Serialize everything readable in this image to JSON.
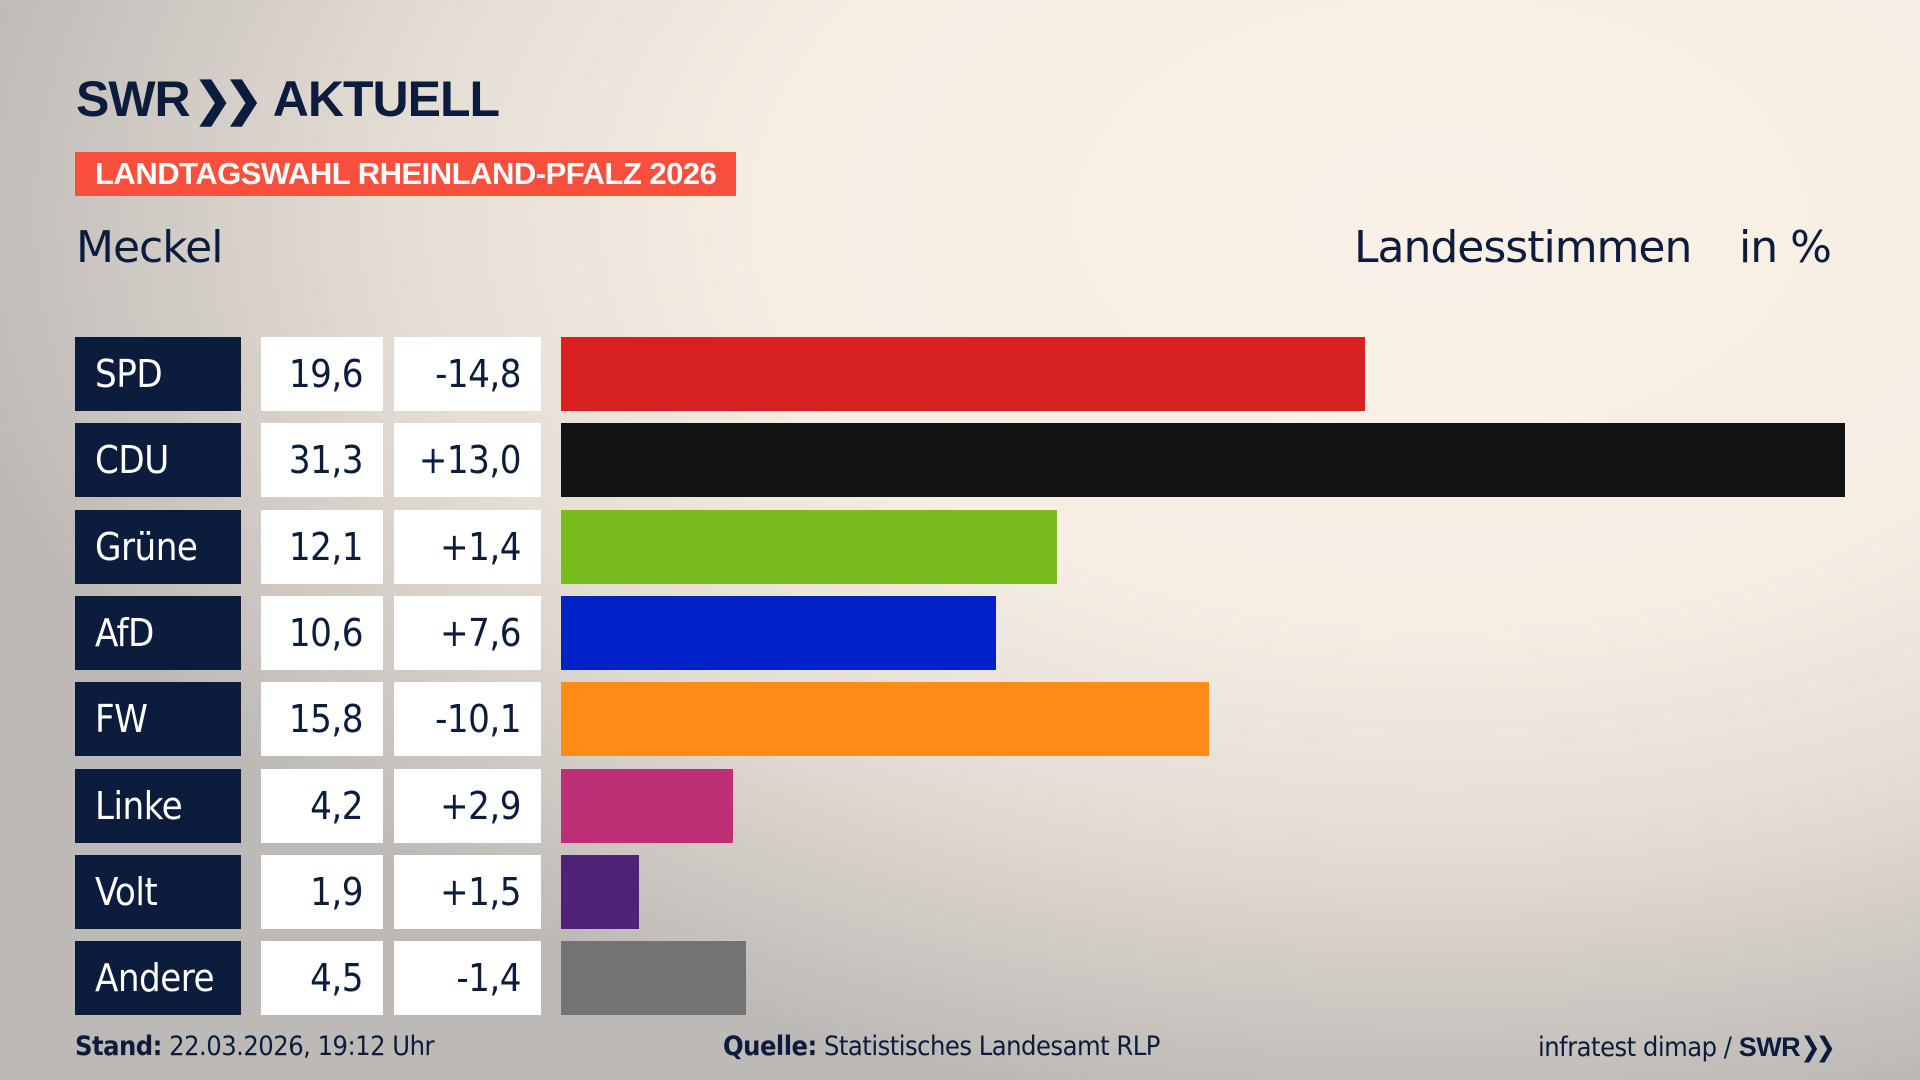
{
  "header": {
    "logo_text": "SWR AKTUELL",
    "logo_swr": "SWR",
    "logo_aktuell": "AKTUELL",
    "banner": "LANDTAGSWAHL RHEINLAND-PFALZ 2026",
    "location": "Meckel",
    "measure": "Landesstimmen",
    "unit": "in %"
  },
  "chart_data": {
    "type": "bar",
    "orientation": "horizontal",
    "categories": [
      "SPD",
      "CDU",
      "Grüne",
      "AfD",
      "FW",
      "Linke",
      "Volt",
      "Andere"
    ],
    "values": [
      19.6,
      31.3,
      12.1,
      10.6,
      15.8,
      4.2,
      1.9,
      4.5
    ],
    "value_labels": [
      "19,6",
      "31,3",
      "12,1",
      "10,6",
      "15,8",
      "4,2",
      "1,9",
      "4,5"
    ],
    "diff_labels": [
      "-14,8",
      "+13,0",
      "+1,4",
      "+7,6",
      "-10,1",
      "+2,9",
      "+1,5",
      "-1,4"
    ],
    "diffs": [
      -14.8,
      13.0,
      1.4,
      7.6,
      -10.1,
      2.9,
      1.5,
      -1.4
    ],
    "colors": [
      "#d72020",
      "#121212",
      "#79bc1e",
      "#0020c8",
      "#ff8c19",
      "#bd3075",
      "#502379",
      "#737373"
    ],
    "xlim": [
      0,
      31.3
    ],
    "grid": false
  },
  "footer": {
    "stand_label": "Stand:",
    "stand_value": "22.03.2026, 19:12 Uhr",
    "quelle_label": "Quelle:",
    "quelle_value": "Statistisches Landesamt RLP",
    "credit": "infratest dimap /",
    "credit_logo": "SWR"
  }
}
